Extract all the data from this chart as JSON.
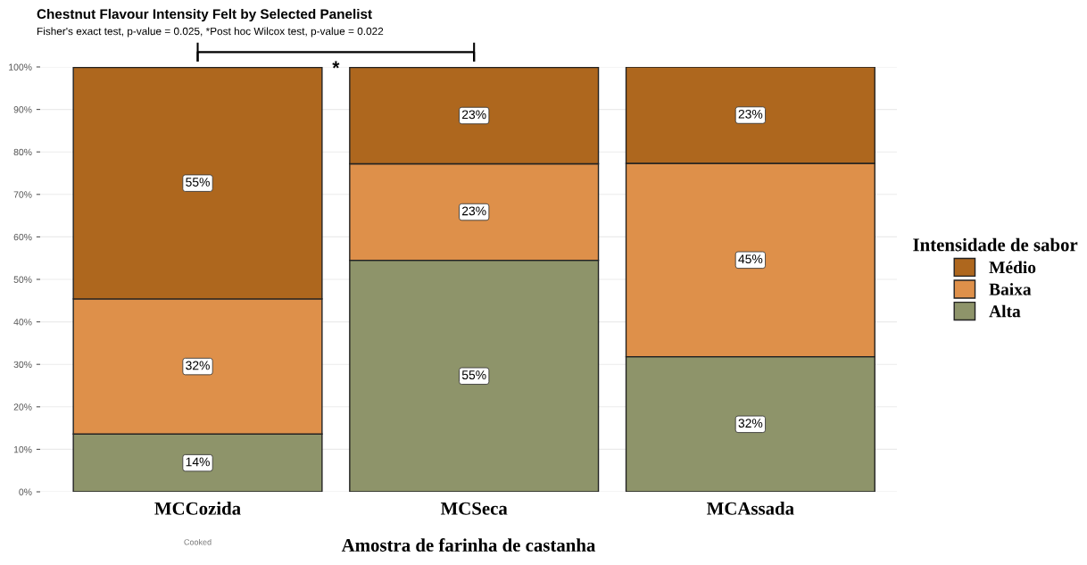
{
  "chart_data": {
    "type": "bar",
    "stacked": true,
    "title": "Chestnut Flavour Intensity Felt by Selected Panelist",
    "subtitle": "Fisher's exact test, p-value = 0.025, *Post hoc Wilcox test, p-value = 0.022",
    "xlabel": "Amostra de farinha de castanha",
    "legend_title": "Intensidade de sabor",
    "legend": "right",
    "categories": [
      "MCCozida",
      "MCSeca",
      "MCAssada"
    ],
    "series": [
      {
        "name": "Alta",
        "color": "#8e946a",
        "values": [
          13.6,
          54.5,
          31.8
        ],
        "value_labels": [
          "14%",
          "55%",
          "32%"
        ]
      },
      {
        "name": "Baixa",
        "color": "#de904a",
        "values": [
          31.8,
          22.7,
          45.5
        ],
        "value_labels": [
          "32%",
          "23%",
          "45%"
        ]
      },
      {
        "name": "Médio",
        "color": "#ae671e",
        "values": [
          54.5,
          22.7,
          22.7
        ],
        "value_labels": [
          "55%",
          "23%",
          "23%"
        ]
      }
    ],
    "ylim": [
      0,
      100
    ],
    "yticks": [
      {
        "value": 0,
        "label": "0%"
      },
      {
        "value": 10,
        "label": "10%"
      },
      {
        "value": 20,
        "label": "20%"
      },
      {
        "value": 30,
        "label": "30%"
      },
      {
        "value": 40,
        "label": "40%"
      },
      {
        "value": 50,
        "label": "50%"
      },
      {
        "value": 60,
        "label": "60%"
      },
      {
        "value": 70,
        "label": "70%"
      },
      {
        "value": 80,
        "label": "80%"
      },
      {
        "value": 90,
        "label": "90%"
      },
      {
        "value": 100,
        "label": "100%"
      }
    ],
    "grid": "y",
    "annotations": [
      "*",
      "Cooked"
    ]
  }
}
